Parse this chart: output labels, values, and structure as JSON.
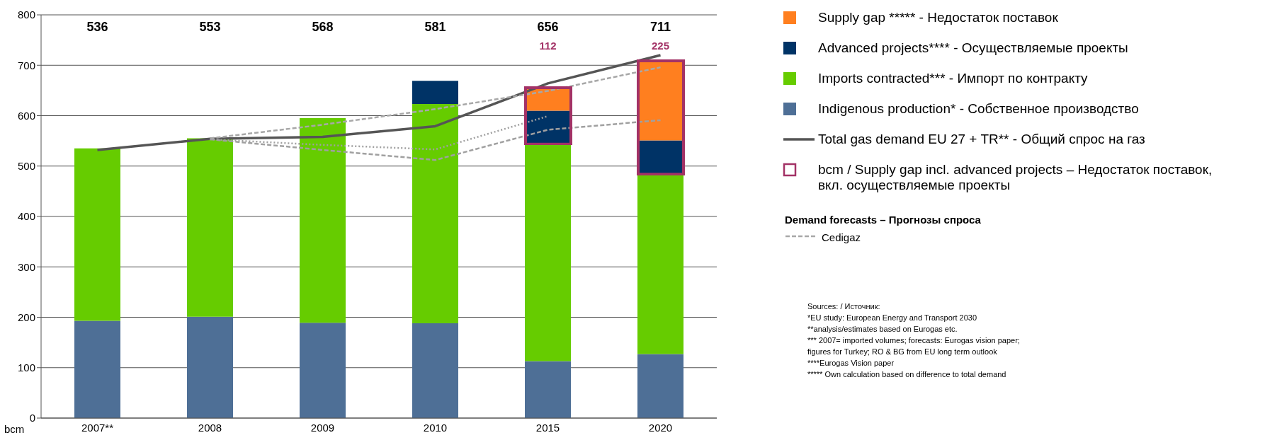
{
  "chart_data": {
    "type": "bar",
    "stacked": true,
    "categories": [
      "2007**",
      "2008",
      "2009",
      "2010",
      "2015",
      "2020"
    ],
    "series": [
      {
        "name": "Indigenous production* - Собственное производство",
        "color": "#4e6f96",
        "values": [
          193,
          201,
          189,
          188,
          113,
          127
        ]
      },
      {
        "name": "Imports contracted*** - Импорт по контракту",
        "color": "#66cc00",
        "values": [
          342,
          354,
          406,
          435,
          431,
          357
        ]
      },
      {
        "name": "Advanced projects**** - Осуществляемые проекты",
        "color": "#003366",
        "values": [
          null,
          null,
          null,
          46,
          66,
          67
        ]
      },
      {
        "name": "Supply gap ***** - Недостаток поставок",
        "color": "#ff7f1f",
        "values": [
          null,
          null,
          null,
          null,
          46,
          158
        ]
      },
      {
        "name": "Total gas demand EU 27 + TR** - Общий спрос на газ",
        "type": "line",
        "line_style": "solid",
        "color": "#555555",
        "values": [
          532,
          554,
          558,
          579,
          664,
          720
        ]
      },
      {
        "type": "line",
        "line_style": "dashed",
        "color": "#a0a0a0",
        "values": [
          null,
          553,
          532,
          512,
          572,
          591
        ]
      },
      {
        "name": "Cedigaz",
        "type": "line",
        "line_style": "dashed",
        "color": "#a8a8a8",
        "values": [
          null,
          555,
          582,
          613,
          649,
          696
        ]
      },
      {
        "type": "line",
        "line_style": "dotted",
        "color": "#a0a0a0",
        "values": [
          null,
          553,
          542,
          533,
          599,
          null
        ]
      }
    ],
    "ylabel": "bcm",
    "ylim": [
      0,
      800
    ],
    "yticks": [
      0,
      100,
      200,
      300,
      400,
      500,
      600,
      700,
      800
    ],
    "grid": "y",
    "legend": "right",
    "annotations": [
      "536",
      "553",
      "568",
      "581",
      "656",
      "711",
      "112",
      "225",
      "bcm / Supply gap incl. advanced projects – Недостаток поставок, вкл. осуществляемые проекты",
      "Demand forecasts – Прогнозы спроса",
      "Sources: / Источник:",
      "*EU study: European Energy and Transport 2030",
      "**analysis/estimates based on Eurogas etc.",
      "*** 2007= imported volumes; forecasts: Eurogas vision paper;",
      "figures for Turkey; RO & BG from EU long term outlook",
      "****Eurogas Vision paper",
      "***** Own calculation based on difference to total demand"
    ]
  }
}
